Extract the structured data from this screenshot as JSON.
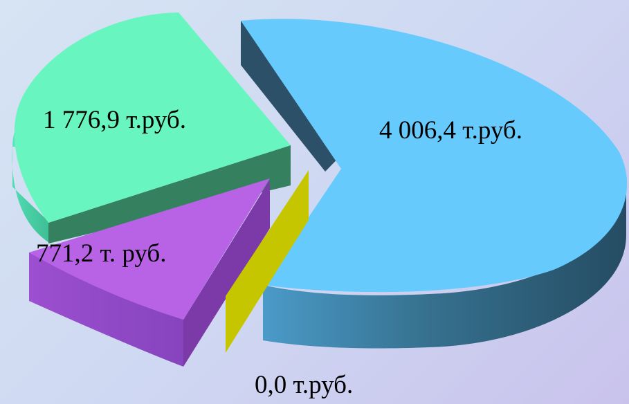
{
  "chart_data": {
    "type": "pie",
    "style": "3d-exploded",
    "slices": [
      {
        "value": 4006.4,
        "label": "4 006,4 т.руб.",
        "color": "#66cafd"
      },
      {
        "value": 1776.9,
        "label": "1 776,9 т.руб.",
        "color": "#69f5bf"
      },
      {
        "value": 771.2,
        "label": "771,2 т. руб.",
        "color": "#b862e6"
      },
      {
        "value": 0.0,
        "label": "0,0 т.руб.",
        "color": "#c6c600"
      }
    ]
  }
}
